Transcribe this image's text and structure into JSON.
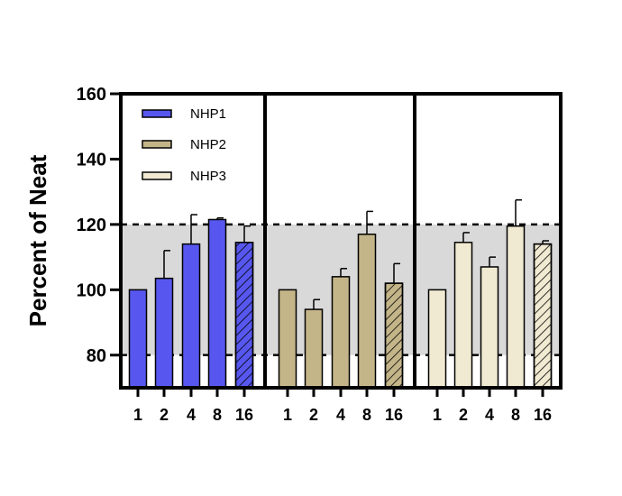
{
  "chart_data": {
    "type": "bar",
    "ylabel": "Percent of Neat",
    "ylim": [
      70,
      160
    ],
    "yticks": [
      80,
      100,
      120,
      140,
      160
    ],
    "reference_band": [
      80,
      120
    ],
    "reference_lines": [
      80,
      120
    ],
    "categories": [
      "1",
      "2",
      "4",
      "8",
      "16"
    ],
    "hatched_category": "16",
    "legend_position": "top-left",
    "series": [
      {
        "name": "NHP1",
        "color": "#5757f0",
        "values": [
          100,
          103.5,
          114,
          121.5,
          114.5
        ],
        "errors": [
          0,
          8.5,
          9,
          0.5,
          5
        ]
      },
      {
        "name": "NHP2",
        "color": "#c4b589",
        "values": [
          100,
          94,
          104,
          117,
          102
        ],
        "errors": [
          0,
          3,
          2.5,
          7,
          6
        ]
      },
      {
        "name": "NHP3",
        "color": "#f1ead2",
        "values": [
          100,
          114.5,
          107,
          119.5,
          114
        ],
        "errors": [
          0,
          3,
          3,
          8,
          1
        ]
      }
    ]
  }
}
